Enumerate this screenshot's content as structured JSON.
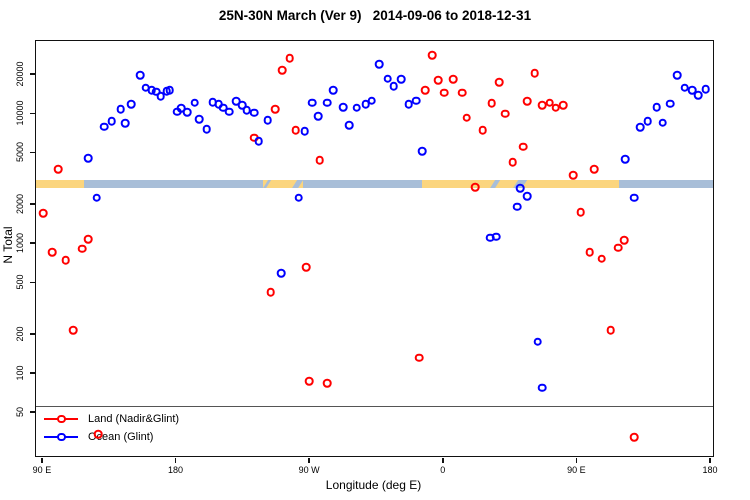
{
  "title": "25N-30N March (Ver 9)   2014-09-06 to 2018-12-31",
  "chart_data": {
    "type": "scatter",
    "title": "25N-30N March (Ver 9)   2014-09-06 to 2018-12-31",
    "xlabel": "Longitude (deg E)",
    "ylabel": "N Total",
    "x_axis": {
      "note": "longitude increases eastward and wraps; axis spans 450 deg",
      "domain": [
        86,
        542
      ],
      "grid": false,
      "ticks": [
        {
          "v": 90,
          "label": "90 E"
        },
        {
          "v": 180,
          "label": "180"
        },
        {
          "v": 270,
          "label": "90 W"
        },
        {
          "v": 360,
          "label": "0"
        },
        {
          "v": 450,
          "label": "90 E"
        },
        {
          "v": 540,
          "label": "180"
        }
      ]
    },
    "y_axis": {
      "scale": "log",
      "domain": [
        23,
        36000
      ],
      "grid": false,
      "ticks": [
        50,
        100,
        200,
        500,
        1000,
        2000,
        5000,
        10000,
        20000
      ]
    },
    "legend": {
      "position": "bottom-left",
      "items": [
        {
          "label": "Land (Nadir&Glint)",
          "color": "#ff0000"
        },
        {
          "label": "Ocean (Glint)",
          "color": "#0000ff"
        }
      ]
    },
    "map_band": {
      "comment": "land/ocean strip drawn across plot between N=2650 and N=3060",
      "value_top": 3060,
      "value_bottom": 2650,
      "land_color": "#fbd57e",
      "ocean_color": "#a8bed8",
      "segments": [
        {
          "type": "land",
          "from": 0.0,
          "to": 0.071
        },
        {
          "type": "ocean",
          "from": 0.071,
          "to": 0.335
        },
        {
          "type": "land",
          "from": 0.335,
          "to": 0.394
        },
        {
          "type": "ocean",
          "from": 0.394,
          "to": 0.57
        },
        {
          "type": "land",
          "from": 0.57,
          "to": 0.861
        },
        {
          "type": "ocean",
          "from": 0.861,
          "to": 1.0
        }
      ],
      "slashes": [
        {
          "from": 0.338,
          "width": 0.005
        },
        {
          "from": 0.381,
          "width": 0.009
        },
        {
          "from": 0.674,
          "width": 0.007
        },
        {
          "from": 0.708,
          "width": 0.013
        }
      ]
    },
    "series": [
      {
        "name": "Land (Nadir&Glint)",
        "color": "#ff0000",
        "points": [
          [
            101,
            3700
          ],
          [
            91,
            1700
          ],
          [
            97,
            855
          ],
          [
            106,
            742
          ],
          [
            111,
            214
          ],
          [
            117,
            906
          ],
          [
            121,
            1070
          ],
          [
            128,
            34
          ],
          [
            233,
            6470
          ],
          [
            244,
            421
          ],
          [
            247,
            10700
          ],
          [
            252,
            21400
          ],
          [
            257,
            26400
          ],
          [
            261,
            7380
          ],
          [
            268,
            655
          ],
          [
            270,
            87
          ],
          [
            277,
            4330
          ],
          [
            282,
            84
          ],
          [
            344,
            131
          ],
          [
            348,
            15000
          ],
          [
            353,
            28000
          ],
          [
            357,
            17900
          ],
          [
            361,
            14360
          ],
          [
            367,
            18200
          ],
          [
            373,
            14360
          ],
          [
            376,
            9220
          ],
          [
            382,
            2700
          ],
          [
            387,
            7410
          ],
          [
            393,
            11900
          ],
          [
            398,
            17360
          ],
          [
            402,
            9900
          ],
          [
            407,
            4210
          ],
          [
            414,
            5520
          ],
          [
            417,
            12400
          ],
          [
            422,
            20250
          ],
          [
            427,
            11500
          ],
          [
            432,
            12030
          ],
          [
            436,
            11010
          ],
          [
            441,
            11500
          ],
          [
            448,
            3325
          ],
          [
            453,
            1736
          ],
          [
            459,
            855
          ],
          [
            462,
            3700
          ],
          [
            467,
            759
          ],
          [
            473,
            214
          ],
          [
            478,
            923
          ],
          [
            482,
            1057
          ],
          [
            489,
            32
          ]
        ]
      },
      {
        "name": "Ocean (Glint)",
        "color": "#0000ff",
        "points": [
          [
            121,
            4490
          ],
          [
            127,
            2240
          ],
          [
            132,
            7860
          ],
          [
            137,
            8700
          ],
          [
            143,
            10700
          ],
          [
            146,
            8350
          ],
          [
            150,
            11700
          ],
          [
            156,
            19550
          ],
          [
            160,
            15690
          ],
          [
            164,
            14980
          ],
          [
            167,
            14620
          ],
          [
            170,
            13550
          ],
          [
            174,
            14800
          ],
          [
            176,
            14980
          ],
          [
            181,
            10260
          ],
          [
            184,
            10900
          ],
          [
            188,
            10200
          ],
          [
            193,
            12030
          ],
          [
            196,
            8970
          ],
          [
            201,
            7510
          ],
          [
            205,
            12180
          ],
          [
            209,
            11700
          ],
          [
            212,
            11010
          ],
          [
            216,
            10260
          ],
          [
            221,
            12400
          ],
          [
            225,
            11550
          ],
          [
            228,
            10510
          ],
          [
            233,
            10080
          ],
          [
            236,
            6105
          ],
          [
            242,
            8850
          ],
          [
            251,
            586
          ],
          [
            263,
            2240
          ],
          [
            267,
            7290
          ],
          [
            272,
            12030
          ],
          [
            276,
            9500
          ],
          [
            282,
            12100
          ],
          [
            286,
            15090
          ],
          [
            293,
            11090
          ],
          [
            297,
            8060
          ],
          [
            302,
            11010
          ],
          [
            308,
            11700
          ],
          [
            312,
            12500
          ],
          [
            317,
            23750
          ],
          [
            323,
            18400
          ],
          [
            327,
            16170
          ],
          [
            332,
            18200
          ],
          [
            337,
            11700
          ],
          [
            342,
            12470
          ],
          [
            346,
            5115
          ],
          [
            392,
            1101
          ],
          [
            396,
            1121
          ],
          [
            410,
            1907
          ],
          [
            412,
            2655
          ],
          [
            417,
            2305
          ],
          [
            424,
            174
          ],
          [
            427,
            77
          ],
          [
            483,
            4415
          ],
          [
            489,
            2240
          ],
          [
            493,
            7820
          ],
          [
            498,
            8700
          ],
          [
            504,
            11090
          ],
          [
            508,
            8440
          ],
          [
            513,
            11820
          ],
          [
            518,
            19550
          ],
          [
            523,
            15690
          ],
          [
            528,
            14980
          ],
          [
            532,
            13720
          ],
          [
            537,
            15250
          ]
        ]
      }
    ]
  }
}
